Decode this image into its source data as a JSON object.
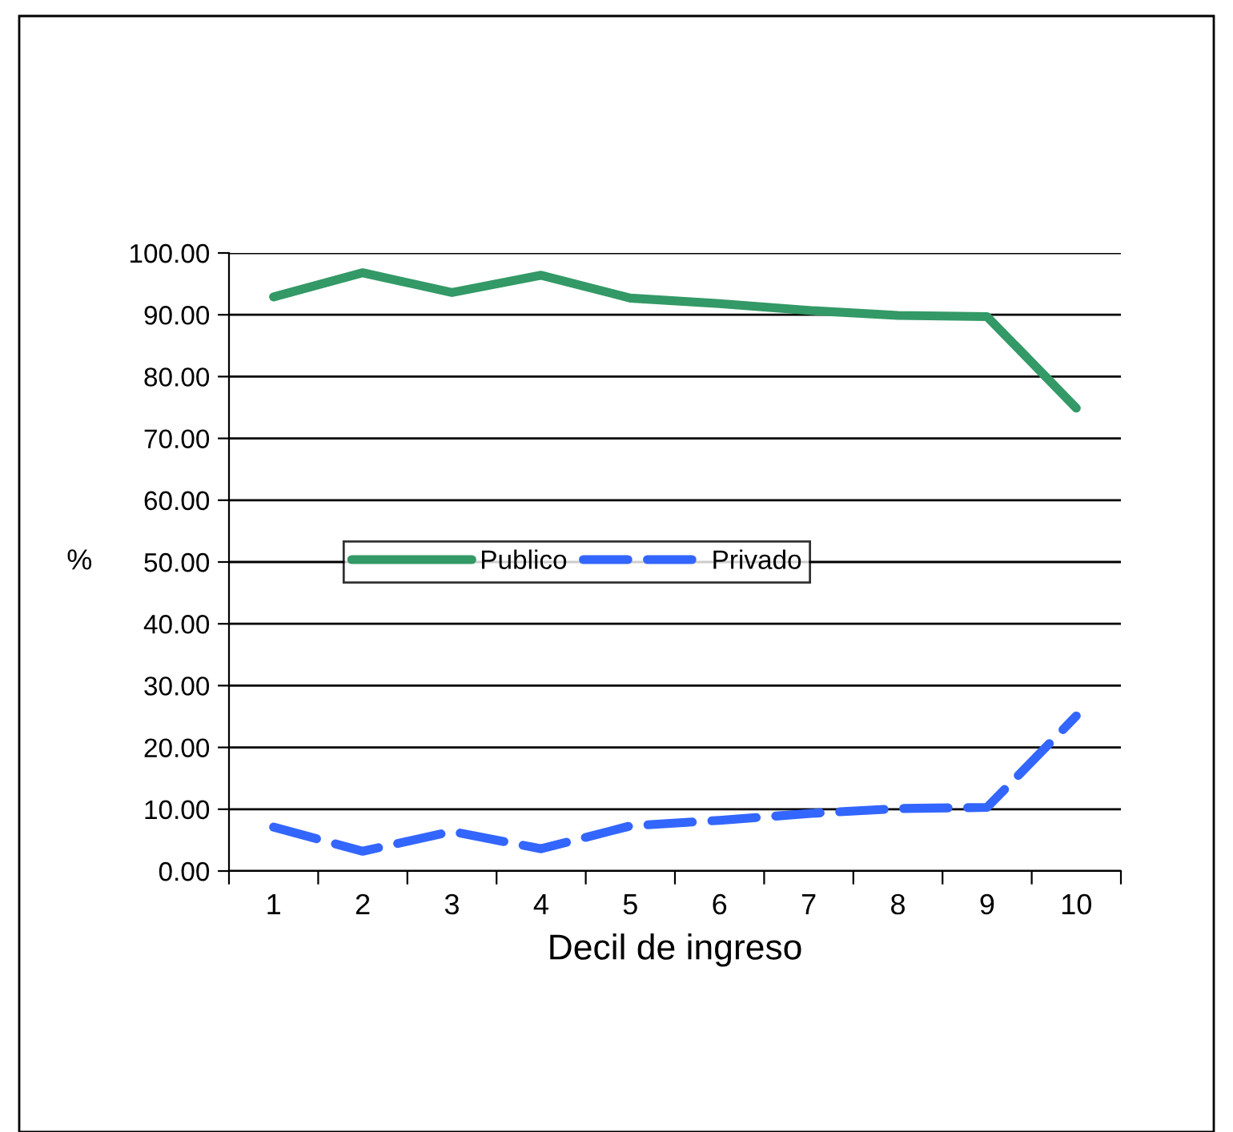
{
  "chart_data": {
    "type": "line",
    "xlabel": "Decil de ingreso",
    "ylabel": "%",
    "categories": [
      "1",
      "2",
      "3",
      "4",
      "5",
      "6",
      "7",
      "8",
      "9",
      "10"
    ],
    "series": [
      {
        "name": "Publico",
        "color": "#339966",
        "line_style": "solid",
        "values": [
          92.9,
          96.8,
          93.6,
          96.4,
          92.7,
          91.8,
          90.7,
          89.9,
          89.7,
          74.9
        ]
      },
      {
        "name": "Privado",
        "color": "#3366ff",
        "line_style": "dashed",
        "values": [
          7.1,
          3.2,
          6.4,
          3.6,
          7.3,
          8.2,
          9.3,
          10.1,
          10.3,
          25.1
        ]
      }
    ],
    "ylim": [
      0,
      100
    ],
    "yticks": [
      {
        "value": 0,
        "label": "0.00"
      },
      {
        "value": 10,
        "label": "10.00"
      },
      {
        "value": 20,
        "label": "20.00"
      },
      {
        "value": 30,
        "label": "30.00"
      },
      {
        "value": 40,
        "label": "40.00"
      },
      {
        "value": 50,
        "label": "50.00"
      },
      {
        "value": 60,
        "label": "60.00"
      },
      {
        "value": 70,
        "label": "70.00"
      },
      {
        "value": 80,
        "label": "80.00"
      },
      {
        "value": 90,
        "label": "90.00"
      },
      {
        "value": 100,
        "label": "100.00"
      }
    ],
    "grid": "y",
    "legend": "center",
    "marker": "none"
  }
}
